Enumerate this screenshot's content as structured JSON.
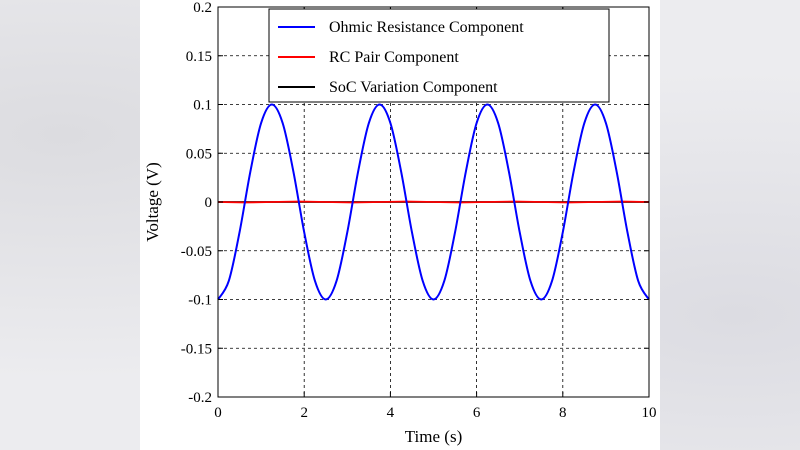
{
  "chart_data": {
    "type": "line",
    "title": "",
    "xlabel": "Time (s)",
    "ylabel": "Voltage (V)",
    "xlim": [
      0,
      10
    ],
    "ylim": [
      -0.2,
      0.2
    ],
    "xticks": [
      0,
      2,
      4,
      6,
      8,
      10
    ],
    "yticks": [
      -0.2,
      -0.15,
      -0.1,
      -0.05,
      0,
      0.05,
      0.1,
      0.15,
      0.2
    ],
    "xtick_labels": [
      "0",
      "2",
      "4",
      "6",
      "8",
      "10"
    ],
    "ytick_labels": [
      "-0.2",
      "-0.15",
      "-0.1",
      "-0.05",
      "0",
      "0.05",
      "0.1",
      "0.15",
      "0.2"
    ],
    "grid": true,
    "grid_style": "dashed",
    "legend_position": "top",
    "series": [
      {
        "name": "Ohmic Resistance Component",
        "color": "#0000ff",
        "x": [
          0,
          0.25,
          0.5,
          0.75,
          1.0,
          1.25,
          1.5,
          1.75,
          2.0,
          2.25,
          2.5,
          2.75,
          3.0,
          3.25,
          3.5,
          3.75,
          4.0,
          4.25,
          4.5,
          4.75,
          5.0,
          5.25,
          5.5,
          5.75,
          6.0,
          6.25,
          6.5,
          6.75,
          7.0,
          7.25,
          7.5,
          7.75,
          8.0,
          8.25,
          8.5,
          8.75,
          9.0,
          9.25,
          9.5,
          9.75,
          10.0
        ],
        "y": [
          -0.1,
          -0.081,
          -0.031,
          0.031,
          0.081,
          0.1,
          0.081,
          0.031,
          -0.031,
          -0.081,
          -0.1,
          -0.081,
          -0.031,
          0.031,
          0.081,
          0.1,
          0.081,
          0.031,
          -0.031,
          -0.081,
          -0.1,
          -0.081,
          -0.031,
          0.031,
          0.081,
          0.1,
          0.081,
          0.031,
          -0.031,
          -0.081,
          -0.1,
          -0.081,
          -0.031,
          0.031,
          0.081,
          0.1,
          0.081,
          0.031,
          -0.031,
          -0.081,
          -0.1
        ]
      },
      {
        "name": "RC Pair Component",
        "color": "#ff0000",
        "x": [
          0,
          0.625,
          1.25,
          1.875,
          2.5,
          3.125,
          3.75,
          4.375,
          5.0,
          5.625,
          6.25,
          6.875,
          7.5,
          8.125,
          8.75,
          9.375,
          10.0
        ],
        "y": [
          0,
          -0.0005,
          0,
          0.0005,
          0,
          -0.0005,
          0,
          0.0005,
          0,
          -0.0005,
          0,
          0.0005,
          0,
          -0.0005,
          0,
          0.0005,
          0
        ]
      },
      {
        "name": "SoC Variation Component",
        "color": "#000000",
        "x": [
          0,
          10
        ],
        "y": [
          0,
          0
        ]
      }
    ]
  }
}
